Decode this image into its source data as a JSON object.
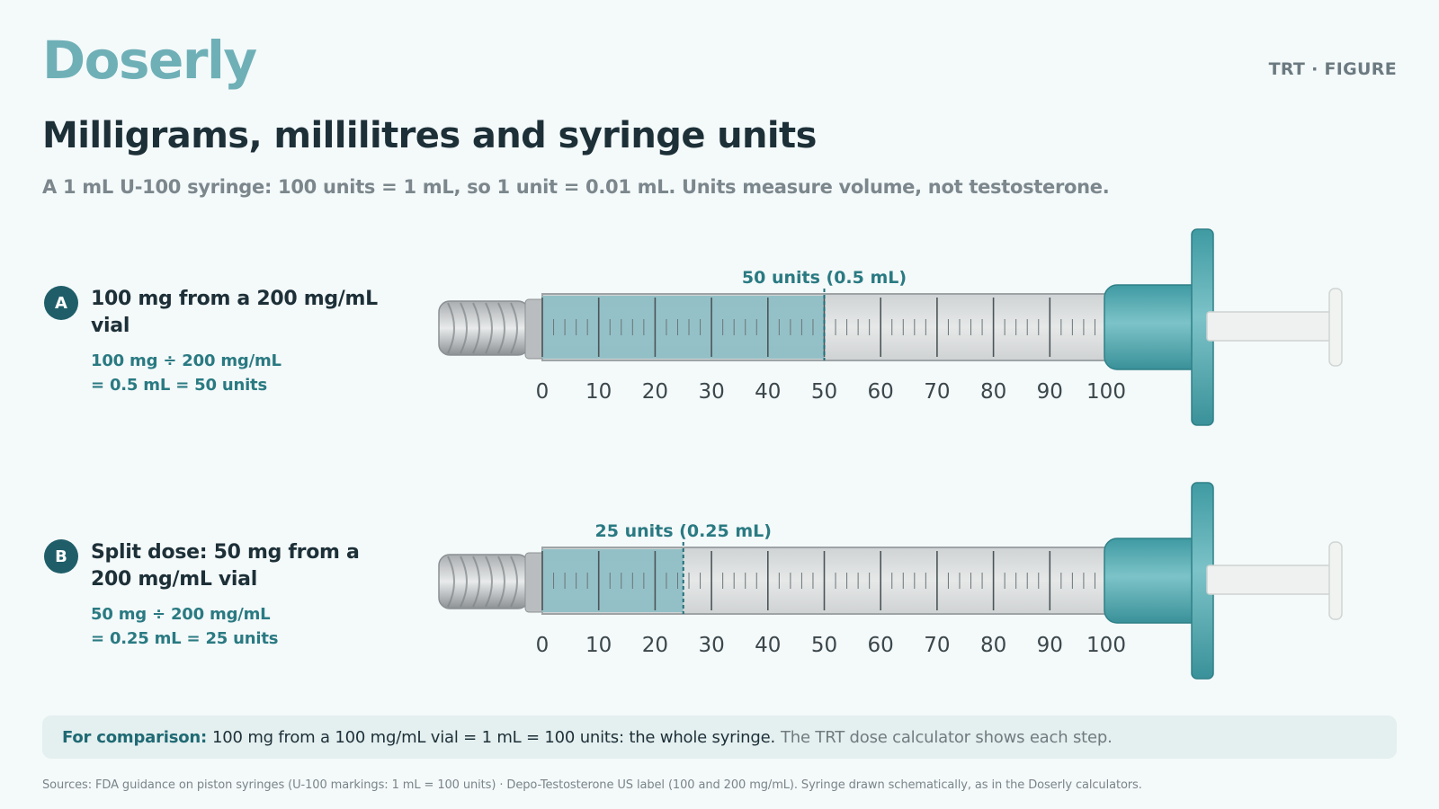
{
  "brand": {
    "logo": "Doserly",
    "tag": "TRT · FIGURE"
  },
  "title": "Milligrams, millilitres and syringe units",
  "subtitle": "A 1 mL U-100 syringe: 100 units = 1 mL, so 1 unit = 0.01 mL. Units measure volume, not testosterone.",
  "scale_labels": [
    "0",
    "10",
    "20",
    "30",
    "40",
    "50",
    "60",
    "70",
    "80",
    "90",
    "100"
  ],
  "rows": [
    {
      "badge": "A",
      "heading": "100 mg from a 200 mg/mL vial",
      "calc_line1": "100 mg ÷ 200 mg/mL",
      "calc_line2": "= 0.5 mL = 50 units",
      "fill_units": 50,
      "fill_label": "50 units (0.5 mL)"
    },
    {
      "badge": "B",
      "heading": "Split dose: 50 mg from a 200 mg/mL vial",
      "calc_line1": "50 mg ÷ 200 mg/mL",
      "calc_line2": "= 0.25 mL = 25 units",
      "fill_units": 25,
      "fill_label": "25 units (0.25 mL)"
    }
  ],
  "callout": {
    "lead": "For comparison:",
    "main": "100 mg from a 100 mg/mL vial = 1 mL = 100 units: the whole syringe.",
    "note": "The TRT dose calculator shows each step."
  },
  "sources": "Sources: FDA guidance on piston syringes (U-100 markings: 1 mL = 100 units) · Depo-Testosterone US label (100 and 200 mg/mL). Syringe drawn schematically, as in the Doserly calculators.",
  "colors": {
    "brand": "#6fb0b7",
    "fill": "#8fbfc5",
    "hub": "#4fa6ad",
    "badge": "#1f5e69"
  }
}
